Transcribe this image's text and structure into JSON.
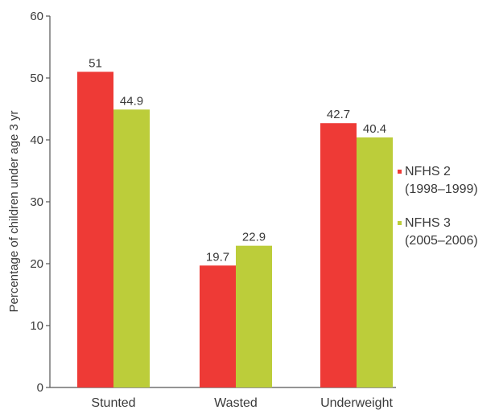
{
  "chart_data": {
    "type": "bar",
    "title": "",
    "xlabel": "",
    "ylabel": "Percentage of children under age 3 yr",
    "ylim": [
      0,
      60
    ],
    "yticks": [
      0,
      10,
      20,
      30,
      40,
      50,
      60
    ],
    "grid": false,
    "legend_position": "right",
    "categories": [
      "Stunted",
      "Wasted",
      "Underweight"
    ],
    "series": [
      {
        "name": "NFHS 2 (1998–1999)",
        "legend_lines": [
          "NFHS 2",
          "(1998–1999)"
        ],
        "color": "#ee3a36",
        "values": [
          51,
          19.7,
          42.7
        ],
        "labels": [
          "51",
          "19.7",
          "42.7"
        ]
      },
      {
        "name": "NFHS 3 (2005–2006)",
        "legend_lines": [
          "NFHS 3",
          "(2005–2006)"
        ],
        "color": "#bccd3a",
        "values": [
          44.9,
          22.9,
          40.4
        ],
        "labels": [
          "44.9",
          "22.9",
          "40.4"
        ]
      }
    ]
  }
}
